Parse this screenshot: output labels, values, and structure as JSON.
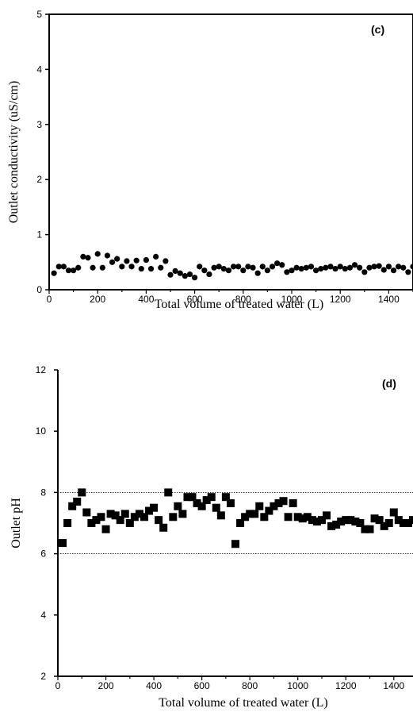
{
  "chart_data": [
    {
      "type": "scatter",
      "panel_label": "(c)",
      "xlabel": "Total volume of treated water (L)",
      "ylabel": "Outlet conductivity (uS/cm)",
      "xlim": [
        0,
        1500
      ],
      "ylim": [
        0,
        5
      ],
      "x_ticks": [
        "0",
        "200",
        "400",
        "600",
        "800",
        "1000",
        "1200",
        "1400"
      ],
      "y_ticks": [
        "0",
        "1",
        "2",
        "3",
        "4",
        "5"
      ],
      "marker": "circle",
      "color": "#000000",
      "reference_lines": [],
      "points": {
        "x": [
          20,
          40,
          60,
          80,
          100,
          120,
          140,
          160,
          180,
          200,
          220,
          240,
          260,
          280,
          300,
          320,
          340,
          360,
          380,
          400,
          420,
          440,
          460,
          480,
          500,
          520,
          540,
          560,
          580,
          600,
          620,
          640,
          660,
          680,
          700,
          720,
          740,
          760,
          780,
          800,
          820,
          840,
          860,
          880,
          900,
          920,
          940,
          960,
          980,
          1000,
          1020,
          1040,
          1060,
          1080,
          1100,
          1120,
          1140,
          1160,
          1180,
          1200,
          1220,
          1240,
          1260,
          1280,
          1300,
          1320,
          1340,
          1360,
          1380,
          1400,
          1420,
          1440,
          1460,
          1480,
          1500
        ],
        "y": [
          0.3,
          0.42,
          0.42,
          0.35,
          0.35,
          0.4,
          0.6,
          0.58,
          0.4,
          0.65,
          0.4,
          0.62,
          0.5,
          0.56,
          0.42,
          0.52,
          0.42,
          0.53,
          0.38,
          0.54,
          0.38,
          0.6,
          0.4,
          0.52,
          0.27,
          0.34,
          0.3,
          0.25,
          0.28,
          0.22,
          0.42,
          0.35,
          0.28,
          0.4,
          0.42,
          0.38,
          0.35,
          0.42,
          0.42,
          0.35,
          0.42,
          0.4,
          0.3,
          0.42,
          0.35,
          0.42,
          0.48,
          0.45,
          0.32,
          0.35,
          0.4,
          0.38,
          0.4,
          0.42,
          0.35,
          0.38,
          0.4,
          0.42,
          0.38,
          0.42,
          0.38,
          0.4,
          0.45,
          0.4,
          0.32,
          0.4,
          0.42,
          0.43,
          0.36,
          0.42,
          0.35,
          0.42,
          0.4,
          0.32,
          0.42
        ]
      }
    },
    {
      "type": "scatter",
      "panel_label": "(d)",
      "xlabel": "Total volume of treated water (L)",
      "ylabel": "Outlet pH",
      "xlim": [
        0,
        1480
      ],
      "ylim": [
        2,
        12
      ],
      "x_ticks": [
        "0",
        "200",
        "400",
        "600",
        "800",
        "1000",
        "1200",
        "1400"
      ],
      "y_ticks": [
        "2",
        "4",
        "6",
        "8",
        "10",
        "12"
      ],
      "marker": "square",
      "color": "#000000",
      "reference_lines": [
        6,
        8
      ],
      "points": {
        "x": [
          20,
          40,
          60,
          80,
          100,
          120,
          140,
          160,
          180,
          200,
          220,
          240,
          260,
          280,
          300,
          320,
          340,
          360,
          380,
          400,
          420,
          440,
          460,
          480,
          500,
          520,
          540,
          560,
          580,
          600,
          620,
          640,
          660,
          680,
          700,
          720,
          740,
          760,
          780,
          800,
          820,
          840,
          860,
          880,
          900,
          920,
          940,
          960,
          980,
          1000,
          1020,
          1040,
          1060,
          1080,
          1100,
          1120,
          1140,
          1160,
          1180,
          1200,
          1220,
          1240,
          1260,
          1280,
          1300,
          1320,
          1340,
          1360,
          1380,
          1400,
          1420,
          1440,
          1460,
          1480
        ],
        "y": [
          6.35,
          7.0,
          7.55,
          7.7,
          8.0,
          7.35,
          7.0,
          7.1,
          7.2,
          6.8,
          7.3,
          7.25,
          7.1,
          7.3,
          7.0,
          7.2,
          7.3,
          7.2,
          7.4,
          7.5,
          7.1,
          6.85,
          8.0,
          7.2,
          7.55,
          7.3,
          7.85,
          7.85,
          7.65,
          7.55,
          7.75,
          7.85,
          7.5,
          7.25,
          7.85,
          7.65,
          6.32,
          7.0,
          7.2,
          7.3,
          7.3,
          7.55,
          7.2,
          7.4,
          7.55,
          7.65,
          7.72,
          7.2,
          7.65,
          7.2,
          7.15,
          7.2,
          7.1,
          7.05,
          7.1,
          7.25,
          6.9,
          6.95,
          7.05,
          7.1,
          7.1,
          7.05,
          7.0,
          6.8,
          6.8,
          7.15,
          7.1,
          6.9,
          7.0,
          7.35,
          7.1,
          7.0,
          7.0,
          7.1
        ]
      }
    }
  ]
}
